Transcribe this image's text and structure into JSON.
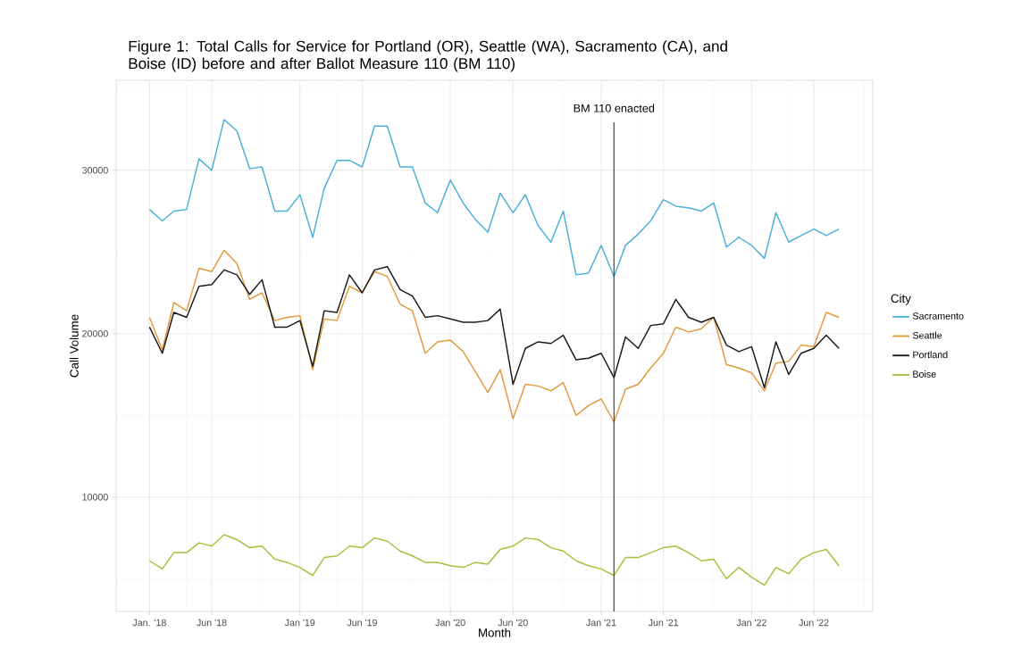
{
  "chart_data": {
    "type": "line",
    "title": "Figure 1: Total Calls for Service for Portland (OR), Seattle (WA), Sacramento (CA), and Boise (ID) before and after Ballot Measure 110 (BM 110)",
    "xlabel": "Month",
    "ylabel": "Call Volume",
    "legend_title": "City",
    "x": [
      "2018-01",
      "2018-02",
      "2018-03",
      "2018-04",
      "2018-05",
      "2018-06",
      "2018-07",
      "2018-08",
      "2018-09",
      "2018-10",
      "2018-11",
      "2018-12",
      "2019-01",
      "2019-02",
      "2019-03",
      "2019-04",
      "2019-05",
      "2019-06",
      "2019-07",
      "2019-08",
      "2019-09",
      "2019-10",
      "2019-11",
      "2019-12",
      "2020-01",
      "2020-02",
      "2020-03",
      "2020-04",
      "2020-05",
      "2020-06",
      "2020-07",
      "2020-08",
      "2020-09",
      "2020-10",
      "2020-11",
      "2020-12",
      "2021-01",
      "2021-02",
      "2021-03",
      "2021-04",
      "2021-05",
      "2021-06",
      "2021-07",
      "2021-08",
      "2021-09",
      "2021-10",
      "2021-11",
      "2021-12",
      "2022-01",
      "2022-02",
      "2022-03",
      "2022-04",
      "2022-05",
      "2022-06",
      "2022-07",
      "2022-08"
    ],
    "series": [
      {
        "name": "Sacramento",
        "color": "#4ab0d9",
        "values": [
          27600,
          26900,
          27500,
          27600,
          30700,
          30000,
          33100,
          32400,
          30100,
          30200,
          27500,
          27500,
          28500,
          25900,
          28900,
          30600,
          30600,
          30200,
          32700,
          32700,
          30200,
          30200,
          28000,
          27400,
          29400,
          28000,
          27000,
          26200,
          28600,
          27400,
          28500,
          26600,
          25600,
          27500,
          23600,
          23700,
          25400,
          23500,
          25400,
          26100,
          26900,
          28200,
          27800,
          27700,
          27500,
          28000,
          25300,
          25900,
          25400,
          24600,
          27400,
          25600,
          26000,
          26400,
          26000,
          26400
        ]
      },
      {
        "name": "Seattle",
        "color": "#e39a3b",
        "values": [
          21000,
          19000,
          21900,
          21400,
          24000,
          23800,
          25100,
          24300,
          22100,
          22500,
          20800,
          21000,
          21100,
          17800,
          20900,
          20800,
          22900,
          22500,
          23800,
          23500,
          21800,
          21400,
          18800,
          19500,
          19600,
          18900,
          17700,
          16400,
          17800,
          14800,
          16900,
          16800,
          16500,
          17000,
          15000,
          15600,
          16000,
          14600,
          16600,
          16900,
          17900,
          18800,
          20400,
          20100,
          20300,
          21000,
          18100,
          17900,
          17600,
          16500,
          18200,
          18300,
          19300,
          19200,
          21300,
          21000
        ]
      },
      {
        "name": "Portland",
        "color": "#1a1a1a",
        "values": [
          20400,
          18800,
          21300,
          21000,
          22900,
          23000,
          23900,
          23600,
          22400,
          23300,
          20400,
          20400,
          20800,
          18000,
          21400,
          21300,
          23600,
          22500,
          23900,
          24100,
          22700,
          22300,
          21000,
          21100,
          20900,
          20700,
          20700,
          20800,
          21500,
          16900,
          19100,
          19500,
          19400,
          19900,
          18400,
          18500,
          18800,
          17300,
          19800,
          19100,
          20500,
          20600,
          22100,
          21000,
          20700,
          21000,
          19300,
          18900,
          19200,
          16700,
          19500,
          17500,
          18800,
          19100,
          19900,
          19100
        ]
      },
      {
        "name": "Boise",
        "color": "#a3c23b",
        "values": [
          6100,
          5600,
          6600,
          6600,
          7200,
          7000,
          7700,
          7400,
          6900,
          7000,
          6200,
          6000,
          5700,
          5200,
          6300,
          6400,
          7000,
          6900,
          7500,
          7300,
          6700,
          6400,
          6000,
          6000,
          5800,
          5700,
          6000,
          5900,
          6800,
          7000,
          7500,
          7400,
          6900,
          6700,
          6100,
          5800,
          5600,
          5200,
          6300,
          6300,
          6600,
          6900,
          7000,
          6600,
          6100,
          6200,
          5000,
          5700,
          5100,
          4600,
          5700,
          5300,
          6200,
          6600,
          6800,
          5800
        ]
      }
    ],
    "xlim": [
      "2017-10-12",
      "2022-10-22"
    ],
    "xticks": [
      {
        "value": "2018-01",
        "label": "Jan. '18"
      },
      {
        "value": "2018-04",
        "label": null
      },
      {
        "value": "2018-06",
        "label": "Jun '18"
      },
      {
        "value": "2018-10",
        "label": null
      },
      {
        "value": "2019-01",
        "label": "Jan '19"
      },
      {
        "value": "2019-04",
        "label": null
      },
      {
        "value": "2019-06",
        "label": "Jun '19"
      },
      {
        "value": "2019-10",
        "label": null
      },
      {
        "value": "2020-01",
        "label": "Jan '20"
      },
      {
        "value": "2020-04",
        "label": null
      },
      {
        "value": "2020-06",
        "label": "Jun '20"
      },
      {
        "value": "2020-10",
        "label": null
      },
      {
        "value": "2021-01",
        "label": "Jan '21"
      },
      {
        "value": "2021-04",
        "label": null
      },
      {
        "value": "2021-06",
        "label": "Jun '21"
      },
      {
        "value": "2021-10",
        "label": null
      },
      {
        "value": "2022-01",
        "label": "Jan '22"
      },
      {
        "value": "2022-04",
        "label": null
      },
      {
        "value": "2022-06",
        "label": "Jun '22"
      },
      {
        "value": "2022-10",
        "label": null
      }
    ],
    "ylim": [
      3000,
      35500
    ],
    "yticks": [
      {
        "value": 5000,
        "label": null
      },
      10000,
      {
        "value": 15000,
        "label": null
      },
      20000,
      {
        "value": 25000,
        "label": null
      },
      30000,
      {
        "value": 35000,
        "label": null
      }
    ],
    "ref_lines": [
      {
        "axis": "x",
        "value": "2021-02",
        "label": "BM 110 enacted",
        "color": "#333333"
      }
    ],
    "grid": true,
    "legend": "right",
    "marker": "none",
    "line_style": "solid"
  }
}
